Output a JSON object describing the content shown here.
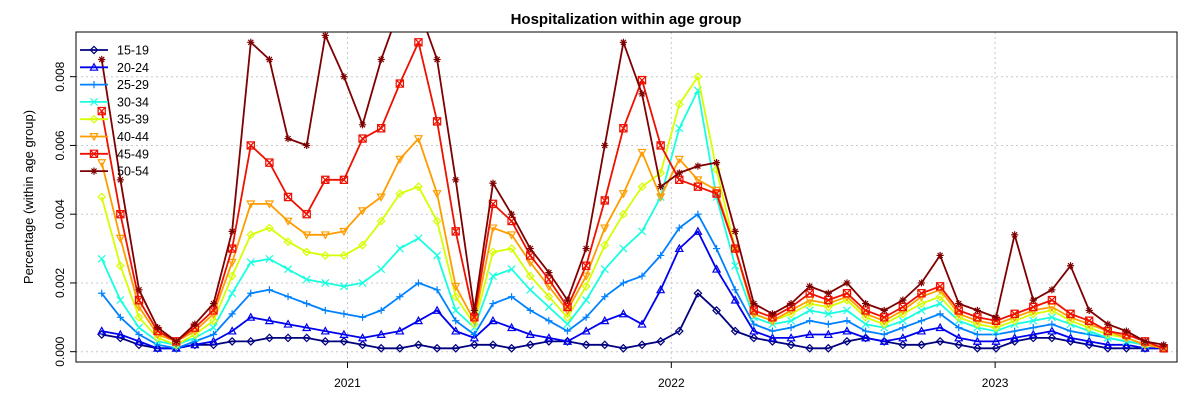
{
  "chart_data": {
    "type": "line",
    "title": "Hospitalization within age group",
    "xlabel": "",
    "ylabel": "Percentage (within age group)",
    "xlim": [
      "2020-03-01",
      "2023-07-25"
    ],
    "ylim": [
      -0.0003,
      0.0093
    ],
    "x_ticks": [
      {
        "date": "2021-01-01",
        "label": "2021"
      },
      {
        "date": "2022-01-01",
        "label": "2022"
      },
      {
        "date": "2023-01-01",
        "label": "2023"
      }
    ],
    "y_ticks": [
      {
        "value": 0.0,
        "label": "0.000"
      },
      {
        "value": 0.002,
        "label": "0.002"
      },
      {
        "value": 0.004,
        "label": "0.004"
      },
      {
        "value": 0.006,
        "label": "0.006"
      },
      {
        "value": 0.008,
        "label": "0.008"
      }
    ],
    "grid": true,
    "legend_position": "top-left",
    "x": [
      "2020-03-30",
      "2020-04-20",
      "2020-05-11",
      "2020-06-01",
      "2020-06-22",
      "2020-07-13",
      "2020-08-03",
      "2020-08-24",
      "2020-09-14",
      "2020-10-05",
      "2020-10-26",
      "2020-11-16",
      "2020-12-07",
      "2020-12-28",
      "2021-01-18",
      "2021-02-08",
      "2021-03-01",
      "2021-03-22",
      "2021-04-12",
      "2021-05-03",
      "2021-05-24",
      "2021-06-14",
      "2021-07-05",
      "2021-07-26",
      "2021-08-16",
      "2021-09-06",
      "2021-09-27",
      "2021-10-18",
      "2021-11-08",
      "2021-11-29",
      "2021-12-20",
      "2022-01-10",
      "2022-01-31",
      "2022-02-21",
      "2022-03-14",
      "2022-04-04",
      "2022-04-25",
      "2022-05-16",
      "2022-06-06",
      "2022-06-27",
      "2022-07-18",
      "2022-08-08",
      "2022-08-29",
      "2022-09-19",
      "2022-10-10",
      "2022-10-31",
      "2022-11-21",
      "2022-12-12",
      "2023-01-02",
      "2023-01-23",
      "2023-02-13",
      "2023-03-06",
      "2023-03-27",
      "2023-04-17",
      "2023-05-08",
      "2023-05-29",
      "2023-06-19",
      "2023-07-10"
    ],
    "series": [
      {
        "name": "15-19",
        "color": "#00007f",
        "marker": "diamond",
        "values": [
          0.0005,
          0.0004,
          0.0002,
          0.0001,
          0.0001,
          0.0002,
          0.0002,
          0.0003,
          0.0003,
          0.0004,
          0.0004,
          0.0004,
          0.0003,
          0.0003,
          0.0002,
          0.0001,
          0.0001,
          0.0002,
          0.0001,
          0.0001,
          0.0002,
          0.0002,
          0.0001,
          0.0002,
          0.0003,
          0.0003,
          0.0002,
          0.0002,
          0.0001,
          0.0002,
          0.0003,
          0.0006,
          0.0017,
          0.0012,
          0.0006,
          0.0004,
          0.0003,
          0.0002,
          0.0001,
          0.0001,
          0.0003,
          0.0004,
          0.0003,
          0.0002,
          0.0002,
          0.0003,
          0.0002,
          0.0001,
          0.0001,
          0.0003,
          0.0004,
          0.0004,
          0.0003,
          0.0002,
          0.0001,
          0.0001,
          0.0001,
          0.0001
        ]
      },
      {
        "name": "20-24",
        "color": "#0000ee",
        "marker": "triangle",
        "values": [
          0.0006,
          0.0005,
          0.0003,
          0.0001,
          0.0001,
          0.0002,
          0.0003,
          0.0006,
          0.001,
          0.0009,
          0.0008,
          0.0007,
          0.0006,
          0.0005,
          0.0004,
          0.0005,
          0.0006,
          0.0009,
          0.0012,
          0.0006,
          0.0004,
          0.0009,
          0.0007,
          0.0005,
          0.0004,
          0.0003,
          0.0006,
          0.0009,
          0.0011,
          0.0008,
          0.0018,
          0.003,
          0.0035,
          0.0024,
          0.0015,
          0.0006,
          0.0004,
          0.0004,
          0.0005,
          0.0005,
          0.0006,
          0.0004,
          0.0003,
          0.0004,
          0.0006,
          0.0007,
          0.0004,
          0.0003,
          0.0003,
          0.0004,
          0.0005,
          0.0006,
          0.0004,
          0.0003,
          0.0002,
          0.0002,
          0.0001,
          0.0001
        ]
      },
      {
        "name": "25-29",
        "color": "#0081ff",
        "marker": "plus",
        "values": [
          0.0017,
          0.001,
          0.0005,
          0.0002,
          0.0001,
          0.0003,
          0.0005,
          0.0011,
          0.0017,
          0.0018,
          0.0016,
          0.0014,
          0.0012,
          0.0011,
          0.001,
          0.0012,
          0.0016,
          0.002,
          0.0018,
          0.0009,
          0.0005,
          0.0014,
          0.0016,
          0.0012,
          0.0009,
          0.0006,
          0.001,
          0.0016,
          0.002,
          0.0022,
          0.0028,
          0.0036,
          0.004,
          0.003,
          0.0018,
          0.0008,
          0.0006,
          0.0007,
          0.0009,
          0.0008,
          0.0009,
          0.0006,
          0.0005,
          0.0007,
          0.0009,
          0.0011,
          0.0007,
          0.0005,
          0.0005,
          0.0006,
          0.0007,
          0.0008,
          0.0006,
          0.0005,
          0.0004,
          0.0003,
          0.0002,
          0.0001
        ]
      },
      {
        "name": "30-34",
        "color": "#17ffdf",
        "marker": "x",
        "values": [
          0.0027,
          0.0015,
          0.0007,
          0.0003,
          0.0002,
          0.0004,
          0.0007,
          0.0017,
          0.0026,
          0.0027,
          0.0024,
          0.0021,
          0.002,
          0.0019,
          0.002,
          0.0024,
          0.003,
          0.0033,
          0.0028,
          0.0012,
          0.0007,
          0.0022,
          0.0024,
          0.0018,
          0.0013,
          0.0008,
          0.0015,
          0.0024,
          0.003,
          0.0035,
          0.0045,
          0.0065,
          0.0076,
          0.0045,
          0.0025,
          0.001,
          0.0008,
          0.0009,
          0.0012,
          0.0011,
          0.0012,
          0.0008,
          0.0007,
          0.0009,
          0.0012,
          0.0014,
          0.0009,
          0.0007,
          0.0006,
          0.0008,
          0.0009,
          0.001,
          0.0008,
          0.0006,
          0.0004,
          0.0003,
          0.0002,
          0.0001
        ]
      },
      {
        "name": "35-39",
        "color": "#d5ff00",
        "marker": "diamond",
        "values": [
          0.0045,
          0.0025,
          0.001,
          0.0004,
          0.0002,
          0.0005,
          0.0009,
          0.0022,
          0.0034,
          0.0036,
          0.0032,
          0.0029,
          0.0028,
          0.0028,
          0.0031,
          0.0038,
          0.0046,
          0.0048,
          0.0038,
          0.0016,
          0.0008,
          0.0029,
          0.003,
          0.0022,
          0.0016,
          0.001,
          0.0019,
          0.0031,
          0.004,
          0.0048,
          0.0052,
          0.0072,
          0.008,
          0.0053,
          0.003,
          0.0011,
          0.0009,
          0.0011,
          0.0014,
          0.0013,
          0.0015,
          0.001,
          0.0008,
          0.0011,
          0.0014,
          0.0016,
          0.001,
          0.0008,
          0.0007,
          0.0009,
          0.0011,
          0.0012,
          0.0009,
          0.0007,
          0.0005,
          0.0004,
          0.0002,
          0.0001
        ]
      },
      {
        "name": "40-44",
        "color": "#ff9c00",
        "marker": "triangle-down",
        "values": [
          0.0055,
          0.0033,
          0.0013,
          0.0005,
          0.0003,
          0.0006,
          0.0011,
          0.0026,
          0.0043,
          0.0043,
          0.0038,
          0.0034,
          0.0034,
          0.0035,
          0.0041,
          0.0045,
          0.0056,
          0.0062,
          0.0046,
          0.0019,
          0.0009,
          0.0036,
          0.0034,
          0.0026,
          0.0019,
          0.0012,
          0.0022,
          0.0036,
          0.0046,
          0.0058,
          0.0045,
          0.0056,
          0.005,
          0.0047,
          0.003,
          0.0011,
          0.0009,
          0.0012,
          0.0015,
          0.0014,
          0.0016,
          0.0011,
          0.0009,
          0.0012,
          0.0016,
          0.0018,
          0.0011,
          0.0009,
          0.0008,
          0.001,
          0.0012,
          0.0013,
          0.001,
          0.0008,
          0.0006,
          0.0004,
          0.0002,
          0.0001
        ]
      },
      {
        "name": "45-49",
        "color": "#ee1000",
        "marker": "square-x",
        "values": [
          0.007,
          0.004,
          0.0015,
          0.0006,
          0.0003,
          0.0007,
          0.0012,
          0.003,
          0.006,
          0.0055,
          0.0045,
          0.004,
          0.005,
          0.005,
          0.0062,
          0.0065,
          0.0078,
          0.009,
          0.0067,
          0.0035,
          0.001,
          0.0043,
          0.0038,
          0.0028,
          0.0021,
          0.0013,
          0.0025,
          0.0044,
          0.0065,
          0.0079,
          0.006,
          0.005,
          0.0048,
          0.0046,
          0.003,
          0.0012,
          0.001,
          0.0013,
          0.0017,
          0.0015,
          0.0017,
          0.0012,
          0.001,
          0.0013,
          0.0017,
          0.0019,
          0.0012,
          0.001,
          0.0009,
          0.0011,
          0.0013,
          0.0015,
          0.0011,
          0.0009,
          0.0006,
          0.0005,
          0.0003,
          0.0001
        ]
      },
      {
        "name": "50-54",
        "color": "#7f0000",
        "marker": "star",
        "values": [
          0.0085,
          0.005,
          0.0018,
          0.0007,
          0.0003,
          0.0008,
          0.0014,
          0.0035,
          0.009,
          0.0085,
          0.0062,
          0.006,
          0.0092,
          0.008,
          0.0066,
          0.0085,
          0.01,
          0.01,
          0.0085,
          0.005,
          0.0012,
          0.0049,
          0.004,
          0.003,
          0.0023,
          0.0015,
          0.003,
          0.006,
          0.009,
          0.0075,
          0.0048,
          0.0052,
          0.0054,
          0.0055,
          0.0035,
          0.0014,
          0.0011,
          0.0014,
          0.0019,
          0.0017,
          0.002,
          0.0014,
          0.0012,
          0.0015,
          0.002,
          0.0028,
          0.0014,
          0.0012,
          0.001,
          0.0034,
          0.0015,
          0.0018,
          0.0025,
          0.0012,
          0.0008,
          0.0006,
          0.0003,
          0.0002
        ]
      }
    ]
  }
}
